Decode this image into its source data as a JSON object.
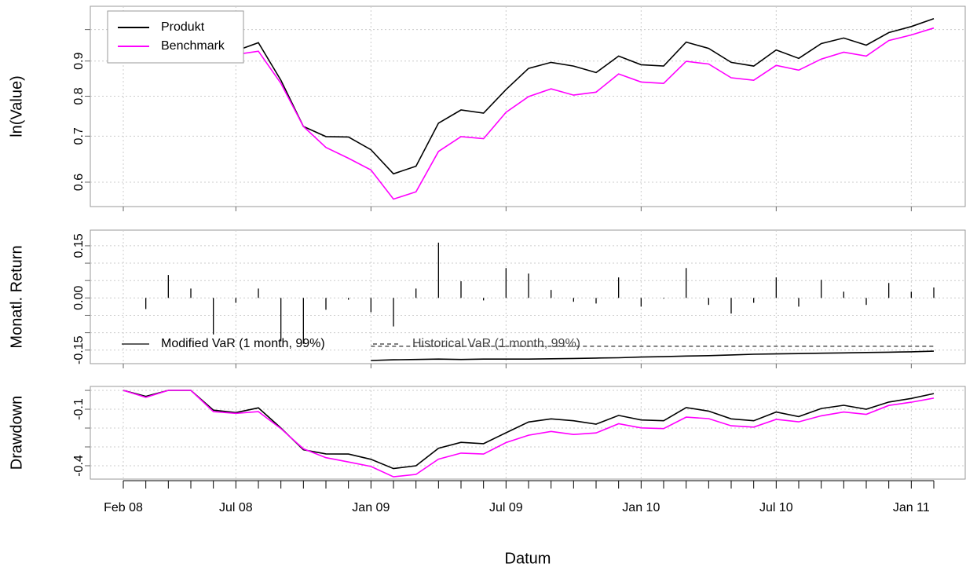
{
  "chart_data": [
    {
      "type": "line",
      "ylabel": "ln(Value)",
      "log": true,
      "ylim": [
        0.553,
        1.081
      ],
      "yticks": [
        0.6,
        0.7,
        0.8,
        0.9
      ],
      "yticks_minor": [
        1
      ],
      "grid": true,
      "legend": "topleft",
      "series": [
        {
          "name": "Produkt",
          "color": "#000000",
          "values": [
            0.995,
            0.963,
            1.027,
            1.055,
            0.944,
            0.931,
            0.957,
            0.844,
            0.723,
            0.699,
            0.698,
            0.669,
            0.617,
            0.633,
            0.731,
            0.764,
            0.756,
            0.818,
            0.878,
            0.896,
            0.885,
            0.866,
            0.915,
            0.889,
            0.885,
            0.959,
            0.939,
            0.896,
            0.885,
            0.934,
            0.908,
            0.954,
            0.972,
            0.949,
            0.99,
            1.01,
            1.037
          ]
        },
        {
          "name": "Benchmark",
          "color": "#ff00ff",
          "values": [
            0.995,
            0.958,
            1.02,
            1.048,
            0.93,
            0.92,
            0.93,
            0.835,
            0.723,
            0.674,
            0.65,
            0.625,
            0.567,
            0.581,
            0.665,
            0.699,
            0.694,
            0.758,
            0.799,
            0.82,
            0.803,
            0.811,
            0.862,
            0.839,
            0.835,
            0.899,
            0.891,
            0.851,
            0.844,
            0.887,
            0.873,
            0.906,
            0.927,
            0.915,
            0.964,
            0.982,
            1.005
          ]
        }
      ]
    },
    {
      "type": "bar",
      "ylabel": "Monatl. Return",
      "ylim": [
        -0.189,
        0.195
      ],
      "yticks": [
        0.15,
        {
          "value": 0,
          "label": "0.00"
        },
        -0.15
      ],
      "yticks_minor": [
        0.1,
        0.05,
        -0.05,
        -0.1
      ],
      "grid": true,
      "legend": "bottom",
      "color": "#000000",
      "values": [
        null,
        -0.032,
        0.066,
        0.027,
        -0.105,
        -0.014,
        0.027,
        -0.123,
        -0.132,
        -0.034,
        -0.005,
        -0.041,
        -0.082,
        0.027,
        0.159,
        0.048,
        -0.007,
        0.086,
        0.07,
        0.023,
        -0.011,
        -0.016,
        0.059,
        -0.025,
        -0.002,
        0.086,
        -0.02,
        -0.045,
        -0.014,
        0.059,
        -0.025,
        0.052,
        0.018,
        -0.02,
        0.043,
        0.018,
        0.03
      ],
      "series": [
        {
          "name": "Modified VaR (1 month, 99%)",
          "color": "#000000",
          "dash": false,
          "values": [
            null,
            null,
            null,
            null,
            null,
            null,
            null,
            null,
            null,
            null,
            null,
            -0.18,
            -0.178,
            -0.177,
            -0.176,
            -0.177,
            -0.176,
            -0.176,
            -0.176,
            -0.175,
            -0.174,
            -0.173,
            -0.172,
            -0.17,
            -0.169,
            -0.167,
            -0.166,
            -0.164,
            -0.162,
            -0.161,
            -0.16,
            -0.159,
            -0.158,
            -0.157,
            -0.156,
            -0.155,
            -0.153
          ]
        },
        {
          "name": "Historical VaR (1 month, 99%)",
          "color": "#333333",
          "dash": true,
          "values": [
            null,
            null,
            null,
            null,
            null,
            null,
            null,
            null,
            null,
            null,
            null,
            -0.139,
            -0.139,
            -0.139,
            -0.139,
            -0.139,
            -0.139,
            -0.139,
            -0.139,
            -0.139,
            -0.139,
            -0.139,
            -0.139,
            -0.139,
            -0.139,
            -0.139,
            -0.139,
            -0.139,
            -0.139,
            -0.139,
            -0.139,
            -0.139,
            -0.139,
            -0.139,
            -0.139,
            -0.139,
            -0.139
          ]
        }
      ]
    },
    {
      "type": "line",
      "ylabel": "Drawdown",
      "xlabel": "Datum",
      "ylim": [
        -0.471,
        0.021
      ],
      "yticks": [
        -0.1,
        -0.4
      ],
      "yticks_minor": [
        0,
        -0.2,
        -0.3
      ],
      "grid": true,
      "categories": [
        "Feb 08",
        null,
        null,
        null,
        null,
        "Jul 08",
        null,
        null,
        null,
        null,
        null,
        "Jan 09",
        null,
        null,
        null,
        null,
        null,
        "Jul 09",
        null,
        null,
        null,
        null,
        null,
        "Jan 10",
        null,
        null,
        null,
        null,
        null,
        "Jul 10",
        null,
        null,
        null,
        null,
        null,
        "Jan 11",
        null
      ],
      "series": [
        {
          "color": "#000000",
          "values": [
            0,
            -0.032,
            0,
            0,
            -0.105,
            -0.118,
            -0.093,
            -0.2,
            -0.315,
            -0.337,
            -0.338,
            -0.366,
            -0.415,
            -0.4,
            -0.307,
            -0.276,
            -0.283,
            -0.225,
            -0.168,
            -0.151,
            -0.161,
            -0.179,
            -0.133,
            -0.157,
            -0.161,
            -0.091,
            -0.11,
            -0.151,
            -0.161,
            -0.115,
            -0.139,
            -0.096,
            -0.079,
            -0.1,
            -0.062,
            -0.043,
            -0.017
          ]
        },
        {
          "color": "#ff00ff",
          "values": [
            0,
            -0.037,
            0,
            0,
            -0.113,
            -0.122,
            -0.113,
            -0.203,
            -0.31,
            -0.357,
            -0.38,
            -0.404,
            -0.459,
            -0.446,
            -0.365,
            -0.333,
            -0.338,
            -0.277,
            -0.238,
            -0.218,
            -0.234,
            -0.226,
            -0.177,
            -0.199,
            -0.203,
            -0.142,
            -0.15,
            -0.188,
            -0.195,
            -0.154,
            -0.167,
            -0.135,
            -0.115,
            -0.127,
            -0.08,
            -0.063,
            -0.041
          ]
        }
      ]
    }
  ]
}
